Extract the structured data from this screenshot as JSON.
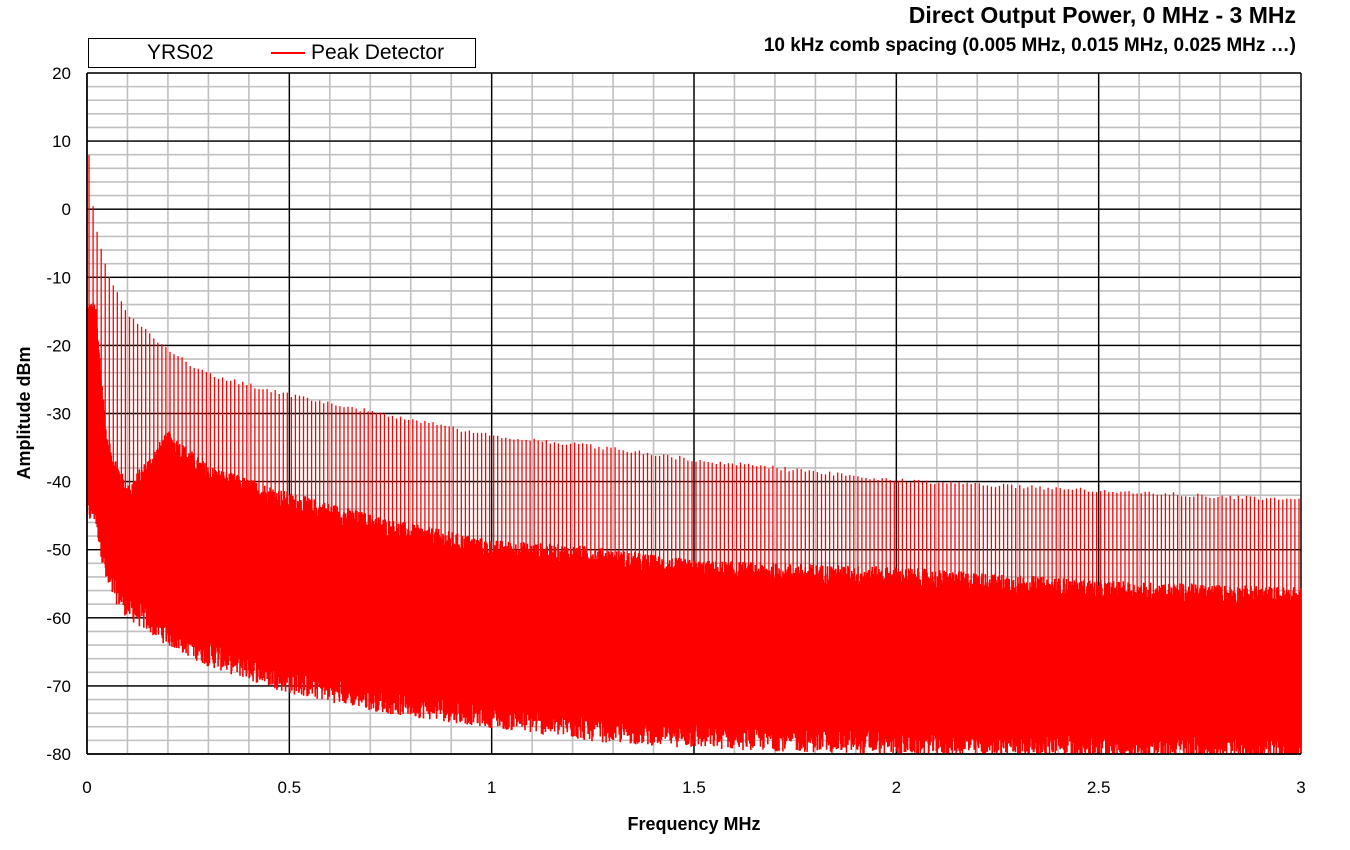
{
  "chart_data": {
    "type": "line",
    "title": "Direct Output Power, 0 MHz - 3 MHz",
    "subtitle": "10 kHz comb spacing (0.005 MHz, 0.015 MHz, 0.025 MHz …)",
    "xlabel": "Frequency MHz",
    "ylabel": "Amplitude dBm",
    "xlim": [
      0,
      3
    ],
    "ylim": [
      -80,
      20
    ],
    "x_ticks": [
      "0",
      "0.5",
      "1",
      "1.5",
      "2",
      "2.5",
      "3"
    ],
    "x_tick_values": [
      0,
      0.5,
      1,
      1.5,
      2,
      2.5,
      3
    ],
    "y_ticks": [
      "20",
      "10",
      "0",
      "-10",
      "-20",
      "-30",
      "-40",
      "-50",
      "-60",
      "-70",
      "-80"
    ],
    "y_tick_values": [
      20,
      10,
      0,
      -10,
      -20,
      -30,
      -40,
      -50,
      -60,
      -70,
      -80
    ],
    "grid": true,
    "legend_position": "top-left",
    "legend": {
      "group_label": "YRS02",
      "series_label": "Peak Detector"
    },
    "series": [
      {
        "name": "Peak Detector",
        "color": "#ff0000",
        "comb_spacing_mhz": 0.01,
        "first_tone_mhz": 0.005,
        "peak_envelope": {
          "x": [
            0.005,
            0.015,
            0.025,
            0.05,
            0.1,
            0.2,
            0.3,
            0.5,
            0.75,
            1.0,
            1.25,
            1.5,
            2.0,
            2.5,
            3.0
          ],
          "y": [
            8.5,
            0.5,
            -3,
            -9,
            -15,
            -20.5,
            -24,
            -27,
            -30,
            -33,
            -34.5,
            -36.5,
            -39.5,
            -41,
            -42.5
          ]
        },
        "floor_upper": {
          "x": [
            0.02,
            0.05,
            0.1,
            0.2,
            0.3,
            0.4,
            0.5,
            0.75,
            1.0,
            1.25,
            1.5,
            2.0,
            2.5,
            3.0
          ],
          "y": [
            -15,
            -35,
            -42,
            -34,
            -39,
            -41,
            -43,
            -47,
            -50,
            -51,
            -53,
            -54,
            -56,
            -57
          ]
        },
        "floor_lower": {
          "x": [
            0.02,
            0.05,
            0.1,
            0.2,
            0.3,
            0.4,
            0.5,
            0.75,
            1.0,
            1.25,
            1.5,
            2.0,
            2.5,
            3.0
          ],
          "y": [
            -45,
            -55,
            -59,
            -63,
            -66,
            -68,
            -70,
            -73,
            -75,
            -77,
            -78,
            -79,
            -79.5,
            -80
          ]
        }
      }
    ]
  }
}
